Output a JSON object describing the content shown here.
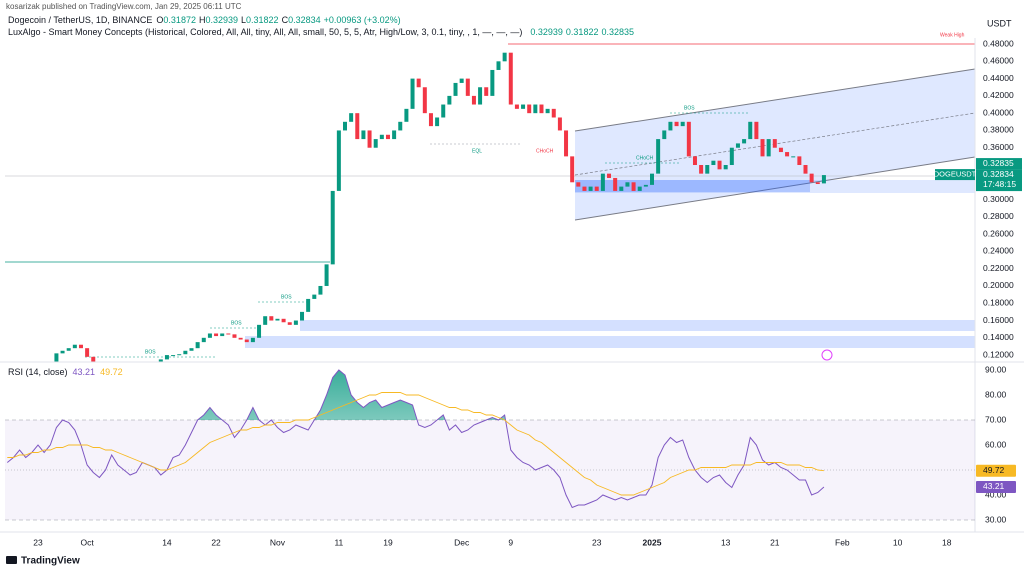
{
  "header": {
    "published": "kosarizak published on TradingView.com, Jan 29, 2025 06:11 UTC"
  },
  "legend": {
    "symbol": "Dogecoin / TetherUS, 1D, BINANCE",
    "o_label": "O",
    "open": 0.31872,
    "h_label": "H",
    "high": 0.32939,
    "l_label": "L",
    "low": 0.31822,
    "c_label": "C",
    "close": 0.32834,
    "change": "+0.00963 (+3.02%)"
  },
  "indicator": {
    "name": "LuxAlgo - Smart Money Concepts (Historical, Colored, All, All, tiny, All, All, small, 50, 5, 5, Atr, High/Low, 3, 0.1, tiny, , 1, —, —, —)",
    "values": [
      0.32939,
      0.31822,
      0.32835
    ]
  },
  "footer": {
    "brand": "TradingView"
  },
  "chart_data": [
    {
      "type": "candlestick",
      "axis_unit": "USDT",
      "symbol_tag": "DOGEUSDT",
      "countdown": "17:48:15",
      "last_price": 0.32834,
      "up_color": "#089981",
      "down_color": "#f23645",
      "grid": false,
      "ylim": [
        0.112,
        0.487
      ],
      "yticks": [
        {
          "value": 0.12,
          "label": "0.12000"
        },
        {
          "value": 0.14,
          "label": "0.14000"
        },
        {
          "value": 0.16,
          "label": "0.16000"
        },
        {
          "value": 0.18,
          "label": "0.18000"
        },
        {
          "value": 0.2,
          "label": "0.20000"
        },
        {
          "value": 0.22,
          "label": "0.22000"
        },
        {
          "value": 0.24,
          "label": "0.24000"
        },
        {
          "value": 0.26,
          "label": "0.26000"
        },
        {
          "value": 0.28,
          "label": "0.28000"
        },
        {
          "value": 0.3,
          "label": "0.30000"
        },
        {
          "value": 0.32,
          "label": "0.32000"
        },
        {
          "value": 0.34,
          "label": "0.34000"
        },
        {
          "value": 0.36,
          "label": "0.36000"
        },
        {
          "value": 0.38,
          "label": "0.38000"
        },
        {
          "value": 0.4,
          "label": "0.40000"
        },
        {
          "value": 0.42,
          "label": "0.42000"
        },
        {
          "value": 0.44,
          "label": "0.44000"
        },
        {
          "value": 0.46,
          "label": "0.46000"
        },
        {
          "value": 0.48,
          "label": "0.48000"
        }
      ],
      "annotations": [
        "Weak High",
        "BOS",
        "BOS",
        "BOS",
        "EQL",
        "CHoCH",
        "CHoCH",
        "BOS"
      ],
      "categories": [
        null,
        null,
        null,
        null,
        null,
        "23",
        null,
        null,
        null,
        null,
        null,
        null,
        null,
        "Oct",
        null,
        null,
        null,
        null,
        null,
        null,
        null,
        null,
        null,
        null,
        null,
        null,
        "14",
        null,
        null,
        null,
        null,
        null,
        null,
        null,
        "22",
        null,
        null,
        null,
        null,
        null,
        null,
        null,
        null,
        null,
        "Nov",
        null,
        null,
        null,
        null,
        null,
        null,
        null,
        null,
        null,
        "11",
        null,
        null,
        null,
        null,
        null,
        null,
        null,
        "19",
        null,
        null,
        null,
        null,
        null,
        null,
        null,
        null,
        null,
        null,
        null,
        "Dec",
        null,
        null,
        null,
        null,
        null,
        null,
        null,
        "9",
        null,
        null,
        null,
        null,
        null,
        null,
        null,
        null,
        null,
        null,
        null,
        null,
        null,
        "23",
        null,
        null,
        null,
        null,
        null,
        null,
        null,
        null,
        "2025",
        null,
        null,
        null,
        null,
        null,
        null,
        null,
        null,
        null,
        null,
        null,
        "13",
        null,
        null,
        null,
        null,
        null,
        null,
        null,
        "21",
        null,
        null,
        null,
        null,
        null,
        null,
        null,
        null,
        null,
        null,
        "Feb",
        null,
        null,
        null,
        null,
        null,
        null,
        null,
        null,
        "10",
        null,
        null,
        null,
        null,
        null,
        null,
        null,
        "18"
      ],
      "open": [
        0.1,
        0.102,
        0.104,
        0.106,
        0.108,
        0.11,
        0.109,
        0.11,
        0.112,
        0.122,
        0.125,
        0.128,
        0.132,
        0.128,
        0.118,
        0.112,
        0.108,
        0.11,
        0.11,
        0.112,
        0.11,
        0.108,
        0.106,
        0.107,
        0.11,
        0.112,
        0.115,
        0.12,
        0.12,
        0.121,
        0.125,
        0.128,
        0.135,
        0.14,
        0.145,
        0.142,
        0.145,
        0.144,
        0.14,
        0.138,
        0.135,
        0.14,
        0.155,
        0.165,
        0.16,
        0.162,
        0.158,
        0.155,
        0.16,
        0.17,
        0.185,
        0.19,
        0.2,
        0.225,
        0.31,
        0.38,
        0.39,
        0.4,
        0.37,
        0.38,
        0.36,
        0.37,
        0.375,
        0.37,
        0.38,
        0.39,
        0.405,
        0.44,
        0.43,
        0.4,
        0.385,
        0.395,
        0.41,
        0.42,
        0.435,
        0.44,
        0.42,
        0.41,
        0.43,
        0.42,
        0.45,
        0.46,
        0.47,
        0.41,
        0.405,
        0.41,
        0.4,
        0.41,
        0.4,
        0.405,
        0.395,
        0.38,
        0.35,
        0.32,
        0.315,
        0.31,
        0.315,
        0.31,
        0.33,
        0.325,
        0.31,
        0.315,
        0.32,
        0.31,
        0.315,
        0.317,
        0.33,
        0.37,
        0.38,
        0.39,
        0.385,
        0.39,
        0.35,
        0.34,
        0.33,
        0.34,
        0.345,
        0.335,
        0.34,
        0.36,
        0.365,
        0.37,
        0.39,
        0.37,
        0.35,
        0.37,
        0.36,
        0.355,
        0.35,
        0.35,
        0.34,
        0.33,
        0.32,
        0.31872,
        null,
        null,
        null,
        null,
        null,
        null,
        null,
        null,
        null,
        null,
        null,
        null,
        null,
        null,
        null,
        null,
        null,
        null,
        null,
        null
      ],
      "close": [
        0.102,
        0.104,
        0.106,
        0.108,
        0.11,
        0.109,
        0.11,
        0.112,
        0.122,
        0.125,
        0.128,
        0.132,
        0.128,
        0.118,
        0.112,
        0.108,
        0.11,
        0.11,
        0.112,
        0.11,
        0.108,
        0.106,
        0.107,
        0.11,
        0.112,
        0.115,
        0.12,
        0.12,
        0.121,
        0.125,
        0.128,
        0.135,
        0.14,
        0.145,
        0.142,
        0.145,
        0.144,
        0.14,
        0.138,
        0.135,
        0.14,
        0.155,
        0.165,
        0.16,
        0.162,
        0.158,
        0.155,
        0.16,
        0.17,
        0.185,
        0.19,
        0.2,
        0.225,
        0.31,
        0.38,
        0.39,
        0.4,
        0.37,
        0.38,
        0.36,
        0.37,
        0.375,
        0.37,
        0.38,
        0.39,
        0.405,
        0.44,
        0.43,
        0.4,
        0.385,
        0.395,
        0.41,
        0.42,
        0.435,
        0.44,
        0.42,
        0.41,
        0.43,
        0.42,
        0.45,
        0.46,
        0.47,
        0.41,
        0.405,
        0.41,
        0.4,
        0.41,
        0.4,
        0.405,
        0.395,
        0.38,
        0.35,
        0.32,
        0.315,
        0.31,
        0.315,
        0.31,
        0.33,
        0.325,
        0.31,
        0.315,
        0.32,
        0.31,
        0.315,
        0.317,
        0.33,
        0.37,
        0.38,
        0.39,
        0.385,
        0.39,
        0.35,
        0.34,
        0.33,
        0.34,
        0.345,
        0.335,
        0.34,
        0.36,
        0.365,
        0.37,
        0.39,
        0.37,
        0.35,
        0.37,
        0.36,
        0.355,
        0.35,
        0.35,
        0.34,
        0.33,
        0.32,
        0.318,
        0.32834,
        null,
        null,
        null,
        null,
        null,
        null,
        null,
        null,
        null,
        null,
        null,
        null,
        null,
        null,
        null,
        null,
        null,
        null,
        null,
        null
      ]
    },
    {
      "type": "line",
      "title": "RSI (14, close)",
      "ylim": [
        26,
        92
      ],
      "yticks": [
        {
          "value": 30,
          "label": "30.00"
        },
        {
          "value": 40,
          "label": "40.00"
        },
        {
          "value": 50,
          "label": "50.00"
        },
        {
          "value": 60,
          "label": "60.00"
        },
        {
          "value": 70,
          "label": "70.00"
        },
        {
          "value": 80,
          "label": "80.00"
        },
        {
          "value": 90,
          "label": "90.00"
        }
      ],
      "bands": [
        70,
        50,
        30
      ],
      "band_color": "#7e57c2",
      "series": [
        {
          "color": "#7e57c2",
          "values": [
            53,
            55,
            58,
            55,
            57,
            60,
            57,
            60,
            67,
            70,
            69,
            66,
            60,
            52,
            49,
            47,
            50,
            56,
            52,
            50,
            48,
            49,
            53,
            52,
            51,
            48,
            50,
            55,
            56,
            60,
            65,
            70,
            72,
            75,
            72,
            70,
            68,
            63,
            66,
            70,
            75,
            70,
            68,
            70,
            67,
            65,
            66,
            68,
            67,
            66,
            70,
            74,
            80,
            87,
            90,
            88,
            80,
            77,
            75,
            77,
            78,
            75,
            76,
            77,
            78,
            77,
            76,
            68,
            67,
            68,
            70,
            72,
            66,
            68,
            65,
            66,
            68,
            69,
            70,
            71,
            70,
            72,
            58,
            55,
            53,
            52,
            50,
            51,
            52,
            50,
            47,
            40,
            35,
            36,
            36,
            37,
            38,
            40,
            39,
            38,
            39,
            38,
            39,
            40,
            40,
            44,
            55,
            60,
            63,
            61,
            62,
            55,
            50,
            47,
            45,
            47,
            48,
            45,
            43,
            48,
            52,
            63,
            60,
            54,
            52,
            53,
            51,
            50,
            48,
            46,
            46,
            40,
            41,
            43.21,
            null,
            null,
            null,
            null,
            null,
            null,
            null,
            null,
            null,
            null,
            null,
            null,
            null,
            null,
            null,
            null,
            null,
            null,
            null,
            null
          ]
        },
        {
          "color": "#f7b924",
          "values": [
            55,
            55,
            56,
            56,
            57,
            57,
            58,
            58,
            59,
            59,
            60,
            60,
            60,
            60,
            59,
            59,
            58,
            58,
            57,
            56,
            55,
            54,
            53,
            52,
            51,
            50,
            50,
            51,
            52,
            53,
            55,
            57,
            59,
            61,
            62,
            63,
            64,
            65,
            66,
            66,
            67,
            67,
            68,
            68,
            69,
            69,
            69,
            70,
            70,
            70,
            71,
            72,
            73,
            74,
            75,
            76,
            77,
            78,
            79,
            80,
            80,
            81,
            81,
            81,
            81,
            80,
            80,
            80,
            79,
            78,
            77,
            76,
            75,
            75,
            74,
            74,
            73,
            73,
            72,
            72,
            71,
            70,
            68,
            66,
            65,
            64,
            62,
            61,
            59,
            57,
            55,
            53,
            51,
            49,
            47,
            46,
            44,
            43,
            42,
            41,
            40,
            40,
            40,
            41,
            42,
            43,
            44,
            45,
            47,
            48,
            49,
            50,
            50,
            51,
            51,
            51,
            51,
            51,
            52,
            52,
            52,
            52,
            53,
            53,
            53,
            53,
            53,
            52,
            52,
            52,
            51,
            51,
            50,
            49.72,
            null,
            null,
            null,
            null,
            null,
            null,
            null,
            null,
            null,
            null,
            null,
            null,
            null,
            null,
            null,
            null,
            null,
            null,
            null,
            null
          ]
        }
      ]
    }
  ]
}
